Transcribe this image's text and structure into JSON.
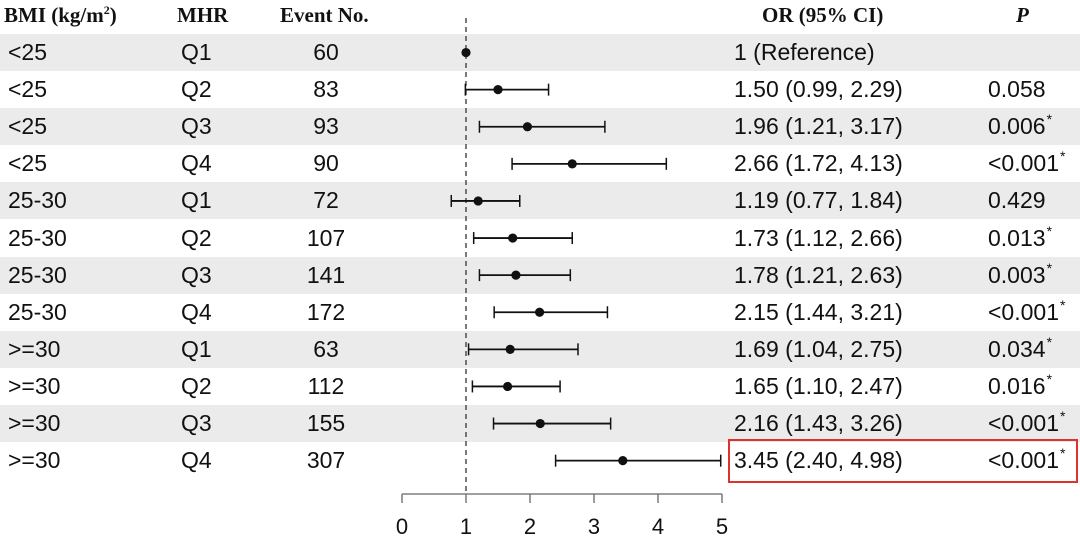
{
  "chart_data": {
    "type": "forest",
    "headers": {
      "bmi_label": "BMI (kg/m",
      "bmi_sup": "2",
      "bmi_close": ")",
      "mhr": "MHR",
      "events": "Event No.",
      "or": "OR (95% CI)",
      "p": "P"
    },
    "rows": [
      {
        "bmi": "<25",
        "mhr": "Q1",
        "events": "60",
        "or": 1.0,
        "lo": 1.0,
        "hi": 1.0,
        "or_text": "1 (Reference)",
        "p": "",
        "sig": false
      },
      {
        "bmi": "<25",
        "mhr": "Q2",
        "events": "83",
        "or": 1.5,
        "lo": 0.99,
        "hi": 2.29,
        "or_text": "1.50 (0.99, 2.29)",
        "p": "0.058",
        "sig": false
      },
      {
        "bmi": "<25",
        "mhr": "Q3",
        "events": "93",
        "or": 1.96,
        "lo": 1.21,
        "hi": 3.17,
        "or_text": "1.96 (1.21, 3.17)",
        "p": "0.006",
        "sig": true
      },
      {
        "bmi": "<25",
        "mhr": "Q4",
        "events": "90",
        "or": 2.66,
        "lo": 1.72,
        "hi": 4.13,
        "or_text": "2.66 (1.72, 4.13)",
        "p": "<0.001",
        "sig": true
      },
      {
        "bmi": "25-30",
        "mhr": "Q1",
        "events": "72",
        "or": 1.19,
        "lo": 0.77,
        "hi": 1.84,
        "or_text": "1.19 (0.77, 1.84)",
        "p": "0.429",
        "sig": false
      },
      {
        "bmi": "25-30",
        "mhr": "Q2",
        "events": "107",
        "or": 1.73,
        "lo": 1.12,
        "hi": 2.66,
        "or_text": "1.73 (1.12, 2.66)",
        "p": "0.013",
        "sig": true
      },
      {
        "bmi": "25-30",
        "mhr": "Q3",
        "events": "141",
        "or": 1.78,
        "lo": 1.21,
        "hi": 2.63,
        "or_text": "1.78 (1.21, 2.63)",
        "p": "0.003",
        "sig": true
      },
      {
        "bmi": "25-30",
        "mhr": "Q4",
        "events": "172",
        "or": 2.15,
        "lo": 1.44,
        "hi": 3.21,
        "or_text": "2.15 (1.44, 3.21)",
        "p": "<0.001",
        "sig": true
      },
      {
        "bmi": ">=30",
        "mhr": "Q1",
        "events": "63",
        "or": 1.69,
        "lo": 1.04,
        "hi": 2.75,
        "or_text": "1.69 (1.04, 2.75)",
        "p": "0.034",
        "sig": true
      },
      {
        "bmi": ">=30",
        "mhr": "Q2",
        "events": "112",
        "or": 1.65,
        "lo": 1.1,
        "hi": 2.47,
        "or_text": "1.65 (1.10, 2.47)",
        "p": "0.016",
        "sig": true
      },
      {
        "bmi": ">=30",
        "mhr": "Q3",
        "events": "155",
        "or": 2.16,
        "lo": 1.43,
        "hi": 3.26,
        "or_text": "2.16 (1.43, 3.26)",
        "p": "<0.001",
        "sig": true
      },
      {
        "bmi": ">=30",
        "mhr": "Q4",
        "events": "307",
        "or": 3.45,
        "lo": 2.4,
        "hi": 4.98,
        "or_text": "3.45 (2.40, 4.98)",
        "p": "<0.001",
        "sig": true
      }
    ],
    "sig_marker": "*",
    "xlim": [
      0,
      5
    ],
    "x_ticks": [
      0,
      1,
      2,
      3,
      4,
      5
    ],
    "reference_line": 1,
    "highlighted_row_index": 11,
    "colors": {
      "stripe": "#ebebeb",
      "ink": "#111111",
      "highlight": "#e03131"
    }
  }
}
